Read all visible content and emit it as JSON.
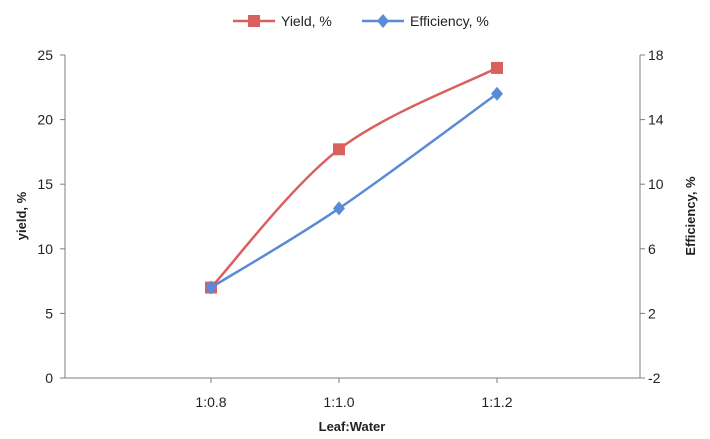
{
  "chart_data": {
    "type": "line",
    "categories": [
      "1:0.8",
      "1:1.0",
      "1:1.2"
    ],
    "xlabel": "Leaf:Water",
    "ylabel_left": "yield, %",
    "ylabel_right": "Efficiency, %",
    "ylim_left": [
      0,
      25
    ],
    "ylim_right": [
      -2,
      18
    ],
    "yticks_left": [
      "0",
      "5",
      "10",
      "15",
      "20",
      "25"
    ],
    "yticks_right": [
      "-2",
      "2",
      "6",
      "10",
      "14",
      "18"
    ],
    "grid": false,
    "legend_position": "top",
    "series": [
      {
        "name": "Yield, %",
        "axis": "left",
        "color": "#d9605c",
        "marker": "square",
        "values": [
          7.0,
          17.7,
          24.0
        ]
      },
      {
        "name": "Efficiency, %",
        "axis": "right",
        "color": "#5b8bd6",
        "marker": "diamond",
        "values": [
          3.6,
          8.5,
          15.6
        ]
      }
    ]
  }
}
